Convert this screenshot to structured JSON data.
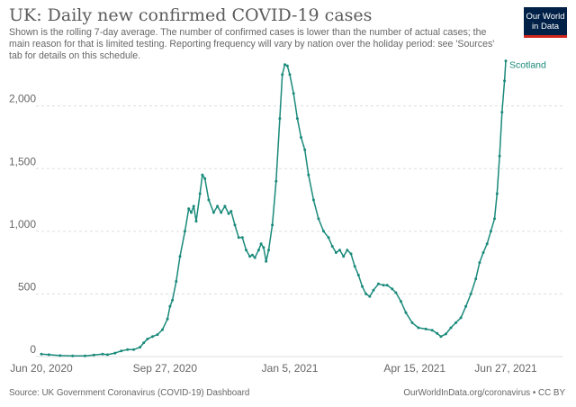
{
  "header": {
    "title": "UK: Daily new confirmed COVID-19 cases",
    "subtitle": "Shown is the rolling 7-day average. The number of confirmed cases is lower than the number of actual cases; the main reason for that is limited testing. Reporting frequency will vary by nation over the holiday period: see 'Sources' tab for details on this schedule.",
    "logo_line1": "Our World",
    "logo_line2": "in Data"
  },
  "footer": {
    "source": "Source: UK Government Coronavirus (COVID-19) Dashboard",
    "credit": "OurWorldInData.org/coronavirus • CC BY"
  },
  "colors": {
    "series": "#1a8a7b",
    "grid": "#dddddd",
    "logo_bg": "#002147",
    "logo_accent": "#ce261e"
  },
  "chart_data": {
    "type": "line",
    "x_start": "2020-06-20",
    "x_end": "2021-06-27",
    "ylim": [
      0,
      2400
    ],
    "grid": "horizontal dashed",
    "y_ticks": [
      0,
      500,
      1000,
      1500,
      2000
    ],
    "y_tick_labels": [
      "0",
      "500",
      "1,000",
      "1,500",
      "2,000"
    ],
    "x_ticks": [
      "2020-06-20",
      "2020-09-27",
      "2021-01-05",
      "2021-04-15",
      "2021-06-27"
    ],
    "x_tick_labels": [
      "Jun 20, 2020",
      "Sep 27, 2020",
      "Jan 5, 2021",
      "Apr 15, 2021",
      "Jun 27, 2021"
    ],
    "series": [
      {
        "name": "Scotland",
        "points": [
          [
            "2020-06-20",
            20
          ],
          [
            "2020-06-26",
            15
          ],
          [
            "2020-07-05",
            8
          ],
          [
            "2020-07-15",
            5
          ],
          [
            "2020-07-25",
            6
          ],
          [
            "2020-08-01",
            12
          ],
          [
            "2020-08-08",
            20
          ],
          [
            "2020-08-12",
            15
          ],
          [
            "2020-08-18",
            28
          ],
          [
            "2020-08-23",
            45
          ],
          [
            "2020-08-28",
            55
          ],
          [
            "2020-09-02",
            55
          ],
          [
            "2020-09-07",
            75
          ],
          [
            "2020-09-10",
            110
          ],
          [
            "2020-09-13",
            140
          ],
          [
            "2020-09-17",
            160
          ],
          [
            "2020-09-21",
            175
          ],
          [
            "2020-09-25",
            215
          ],
          [
            "2020-09-29",
            300
          ],
          [
            "2020-10-01",
            400
          ],
          [
            "2020-10-03",
            450
          ],
          [
            "2020-10-06",
            600
          ],
          [
            "2020-10-09",
            800
          ],
          [
            "2020-10-13",
            1000
          ],
          [
            "2020-10-16",
            1180
          ],
          [
            "2020-10-18",
            1150
          ],
          [
            "2020-10-20",
            1200
          ],
          [
            "2020-10-22",
            1080
          ],
          [
            "2020-10-25",
            1300
          ],
          [
            "2020-10-27",
            1450
          ],
          [
            "2020-10-29",
            1420
          ],
          [
            "2020-11-01",
            1250
          ],
          [
            "2020-11-05",
            1150
          ],
          [
            "2020-11-08",
            1200
          ],
          [
            "2020-11-11",
            1150
          ],
          [
            "2020-11-14",
            1200
          ],
          [
            "2020-11-17",
            1140
          ],
          [
            "2020-11-19",
            1160
          ],
          [
            "2020-11-22",
            1050
          ],
          [
            "2020-11-25",
            950
          ],
          [
            "2020-11-28",
            950
          ],
          [
            "2020-12-01",
            850
          ],
          [
            "2020-12-04",
            800
          ],
          [
            "2020-12-06",
            810
          ],
          [
            "2020-12-08",
            790
          ],
          [
            "2020-12-11",
            850
          ],
          [
            "2020-12-13",
            900
          ],
          [
            "2020-12-15",
            870
          ],
          [
            "2020-12-17",
            760
          ],
          [
            "2020-12-19",
            850
          ],
          [
            "2020-12-22",
            1050
          ],
          [
            "2020-12-25",
            1400
          ],
          [
            "2020-12-28",
            1900
          ],
          [
            "2020-12-30",
            2250
          ],
          [
            "2021-01-01",
            2330
          ],
          [
            "2021-01-03",
            2320
          ],
          [
            "2021-01-05",
            2250
          ],
          [
            "2021-01-08",
            2100
          ],
          [
            "2021-01-11",
            1900
          ],
          [
            "2021-01-14",
            1750
          ],
          [
            "2021-01-17",
            1650
          ],
          [
            "2021-01-20",
            1450
          ],
          [
            "2021-01-24",
            1250
          ],
          [
            "2021-01-28",
            1100
          ],
          [
            "2021-02-01",
            1000
          ],
          [
            "2021-02-05",
            950
          ],
          [
            "2021-02-08",
            880
          ],
          [
            "2021-02-11",
            830
          ],
          [
            "2021-02-14",
            850
          ],
          [
            "2021-02-17",
            800
          ],
          [
            "2021-02-20",
            850
          ],
          [
            "2021-02-23",
            820
          ],
          [
            "2021-02-26",
            720
          ],
          [
            "2021-03-01",
            650
          ],
          [
            "2021-03-04",
            560
          ],
          [
            "2021-03-07",
            500
          ],
          [
            "2021-03-10",
            480
          ],
          [
            "2021-03-13",
            530
          ],
          [
            "2021-03-17",
            580
          ],
          [
            "2021-03-21",
            570
          ],
          [
            "2021-03-24",
            570
          ],
          [
            "2021-03-28",
            540
          ],
          [
            "2021-03-31",
            510
          ],
          [
            "2021-04-04",
            440
          ],
          [
            "2021-04-08",
            350
          ],
          [
            "2021-04-13",
            270
          ],
          [
            "2021-04-18",
            230
          ],
          [
            "2021-04-24",
            220
          ],
          [
            "2021-04-29",
            210
          ],
          [
            "2021-05-03",
            185
          ],
          [
            "2021-05-06",
            160
          ],
          [
            "2021-05-10",
            180
          ],
          [
            "2021-05-14",
            230
          ],
          [
            "2021-05-18",
            270
          ],
          [
            "2021-05-22",
            310
          ],
          [
            "2021-05-26",
            400
          ],
          [
            "2021-05-30",
            500
          ],
          [
            "2021-06-03",
            620
          ],
          [
            "2021-06-06",
            750
          ],
          [
            "2021-06-09",
            830
          ],
          [
            "2021-06-12",
            900
          ],
          [
            "2021-06-15",
            1000
          ],
          [
            "2021-06-18",
            1100
          ],
          [
            "2021-06-20",
            1300
          ],
          [
            "2021-06-22",
            1600
          ],
          [
            "2021-06-24",
            1950
          ],
          [
            "2021-06-26",
            2200
          ],
          [
            "2021-06-27",
            2360
          ]
        ]
      }
    ]
  }
}
